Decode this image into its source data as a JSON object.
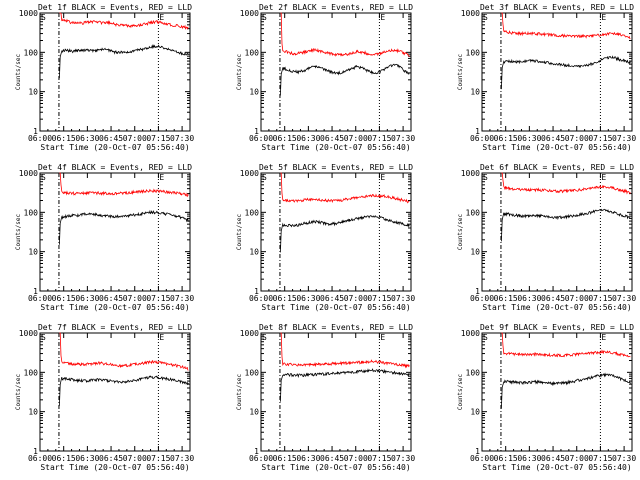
{
  "chart_data": [
    {
      "type": "line",
      "title": "Det 1f BLACK = Events, RED = LLD",
      "xlabel": "Start Time (20-Oct-07 05:56:40)",
      "ylabel": "Counts/sec",
      "yscale": "log",
      "ylim": [
        1,
        1000
      ],
      "xticks": [
        "06:00",
        "06:15",
        "06:30",
        "06:45",
        "07:00",
        "07:15",
        "07:30"
      ],
      "yticks": [
        "1",
        "10",
        "100",
        "1000"
      ],
      "markers": [
        "S",
        "E"
      ],
      "series": [
        {
          "color": "#000000",
          "values": [
            110,
            112,
            105,
            110,
            115,
            113,
            108,
            112,
            120,
            112,
            102,
            100,
            100,
            105,
            112,
            118,
            125,
            138,
            145,
            135,
            120,
            110,
            100,
            92,
            88
          ]
        },
        {
          "color": "#ff0000",
          "values": [
            650,
            620,
            560,
            540,
            560,
            590,
            600,
            580,
            560,
            560,
            520,
            490,
            470,
            470,
            480,
            500,
            530,
            580,
            600,
            560,
            520,
            490,
            470,
            440,
            420
          ]
        }
      ]
    },
    {
      "type": "line",
      "title": "Det 2f BLACK = Events, RED = LLD",
      "xlabel": "Start Time (20-Oct-07 05:56:40)",
      "ylabel": "Counts/sec",
      "yscale": "log",
      "ylim": [
        1,
        1000
      ],
      "xticks": [
        "06:00",
        "06:15",
        "06:30",
        "06:45",
        "07:00",
        "07:15",
        "07:30"
      ],
      "yticks": [
        "1",
        "10",
        "100",
        "1000"
      ],
      "markers": [
        "S",
        "E"
      ],
      "series": [
        {
          "color": "#000000",
          "values": [
            40,
            36,
            32,
            32,
            35,
            40,
            43,
            41,
            36,
            32,
            30,
            30,
            33,
            38,
            43,
            40,
            35,
            30,
            30,
            35,
            42,
            48,
            45,
            35,
            28
          ]
        },
        {
          "color": "#ff0000",
          "values": [
            110,
            100,
            92,
            95,
            102,
            110,
            115,
            110,
            100,
            92,
            88,
            85,
            88,
            96,
            104,
            100,
            94,
            88,
            90,
            98,
            108,
            115,
            110,
            95,
            82
          ]
        }
      ]
    },
    {
      "type": "line",
      "title": "Det 3f BLACK = Events, RED = LLD",
      "xlabel": "Start Time (20-Oct-07 05:56:40)",
      "ylabel": "Counts/sec",
      "yscale": "log",
      "ylim": [
        1,
        1000
      ],
      "xticks": [
        "06:00",
        "06:15",
        "06:30",
        "06:45",
        "07:00",
        "07:15",
        "07:30"
      ],
      "yticks": [
        "1",
        "10",
        "100",
        "1000"
      ],
      "markers": [
        "S",
        "E"
      ],
      "series": [
        {
          "color": "#000000",
          "values": [
            58,
            60,
            57,
            58,
            60,
            62,
            60,
            57,
            55,
            52,
            50,
            48,
            47,
            46,
            46,
            46,
            48,
            52,
            58,
            68,
            75,
            72,
            65,
            60,
            55
          ]
        },
        {
          "color": "#ff0000",
          "values": [
            340,
            320,
            305,
            300,
            300,
            305,
            300,
            295,
            285,
            280,
            270,
            265,
            262,
            260,
            258,
            256,
            258,
            262,
            270,
            280,
            300,
            300,
            280,
            260,
            235
          ]
        }
      ]
    },
    {
      "type": "line",
      "title": "Det 4f BLACK = Events, RED = LLD",
      "xlabel": "Start Time (20-Oct-07 05:56:40)",
      "ylabel": "Counts/sec",
      "yscale": "log",
      "ylim": [
        1,
        1000
      ],
      "xticks": [
        "06:00",
        "06:15",
        "06:30",
        "06:45",
        "07:00",
        "07:15",
        "07:30"
      ],
      "yticks": [
        "1",
        "10",
        "100",
        "1000"
      ],
      "markers": [
        "S",
        "E"
      ],
      "series": [
        {
          "color": "#000000",
          "values": [
            75,
            80,
            82,
            84,
            88,
            90,
            88,
            86,
            82,
            80,
            78,
            78,
            80,
            84,
            88,
            92,
            96,
            100,
            98,
            94,
            90,
            86,
            80,
            72,
            62
          ]
        },
        {
          "color": "#ff0000",
          "values": [
            330,
            315,
            305,
            300,
            305,
            310,
            312,
            310,
            305,
            300,
            300,
            305,
            312,
            320,
            330,
            340,
            350,
            355,
            350,
            340,
            330,
            320,
            305,
            290,
            270
          ]
        }
      ]
    },
    {
      "type": "line",
      "title": "Det 5f BLACK = Events, RED = LLD",
      "xlabel": "Start Time (20-Oct-07 05:56:40)",
      "ylabel": "Counts/sec",
      "yscale": "log",
      "ylim": [
        1,
        1000
      ],
      "xticks": [
        "06:00",
        "06:15",
        "06:30",
        "06:45",
        "07:00",
        "07:15",
        "07:30"
      ],
      "yticks": [
        "1",
        "10",
        "100",
        "1000"
      ],
      "markers": [
        "S",
        "E"
      ],
      "series": [
        {
          "color": "#000000",
          "values": [
            48,
            47,
            46,
            48,
            52,
            55,
            58,
            56,
            52,
            50,
            52,
            55,
            60,
            64,
            70,
            74,
            76,
            78,
            76,
            70,
            64,
            58,
            54,
            50,
            46
          ]
        },
        {
          "color": "#ff0000",
          "values": [
            200,
            195,
            192,
            195,
            205,
            210,
            215,
            210,
            200,
            198,
            200,
            205,
            215,
            225,
            235,
            245,
            255,
            265,
            268,
            258,
            245,
            230,
            215,
            200,
            185
          ]
        }
      ]
    },
    {
      "type": "line",
      "title": "Det 6f BLACK = Events, RED = LLD",
      "xlabel": "Start Time (20-Oct-07 05:56:40)",
      "ylabel": "Counts/sec",
      "yscale": "log",
      "ylim": [
        1,
        1000
      ],
      "xticks": [
        "06:00",
        "06:15",
        "06:30",
        "06:45",
        "07:00",
        "07:15",
        "07:30"
      ],
      "yticks": [
        "1",
        "10",
        "100",
        "1000"
      ],
      "markers": [
        "S",
        "E"
      ],
      "series": [
        {
          "color": "#000000",
          "values": [
            92,
            90,
            86,
            82,
            80,
            82,
            84,
            82,
            78,
            76,
            74,
            75,
            78,
            82,
            86,
            90,
            96,
            104,
            110,
            112,
            106,
            98,
            88,
            80,
            72
          ]
        },
        {
          "color": "#ff0000",
          "values": [
            430,
            410,
            390,
            375,
            370,
            372,
            375,
            370,
            360,
            350,
            345,
            345,
            350,
            360,
            372,
            385,
            400,
            420,
            440,
            445,
            430,
            405,
            375,
            345,
            300
          ]
        }
      ]
    },
    {
      "type": "line",
      "title": "Det 7f BLACK = Events, RED = LLD",
      "xlabel": "Start Time (20-Oct-07 05:56:40)",
      "ylabel": "Counts/sec",
      "yscale": "log",
      "ylim": [
        1,
        1000
      ],
      "xticks": [
        "06:00",
        "06:15",
        "06:30",
        "06:45",
        "07:00",
        "07:15",
        "07:30"
      ],
      "yticks": [
        "1",
        "10",
        "100",
        "1000"
      ],
      "markers": [
        "S",
        "E"
      ],
      "series": [
        {
          "color": "#000000",
          "values": [
            70,
            68,
            66,
            62,
            60,
            62,
            65,
            66,
            64,
            60,
            58,
            56,
            57,
            60,
            64,
            68,
            72,
            76,
            75,
            72,
            68,
            64,
            60,
            56,
            52
          ]
        },
        {
          "color": "#ff0000",
          "values": [
            175,
            170,
            165,
            160,
            158,
            162,
            168,
            172,
            168,
            160,
            152,
            148,
            148,
            152,
            160,
            168,
            178,
            185,
            182,
            175,
            165,
            155,
            145,
            135,
            120
          ]
        }
      ]
    },
    {
      "type": "line",
      "title": "Det 8f BLACK = Events, RED = LLD",
      "xlabel": "Start Time (20-Oct-07 05:56:40)",
      "ylabel": "Counts/sec",
      "yscale": "log",
      "ylim": [
        1,
        1000
      ],
      "xticks": [
        "06:00",
        "06:15",
        "06:30",
        "06:45",
        "07:00",
        "07:15",
        "07:30"
      ],
      "yticks": [
        "1",
        "10",
        "100",
        "1000"
      ],
      "markers": [
        "S",
        "E"
      ],
      "series": [
        {
          "color": "#000000",
          "values": [
            90,
            88,
            85,
            84,
            84,
            86,
            88,
            90,
            92,
            94,
            95,
            96,
            98,
            100,
            104,
            108,
            110,
            112,
            110,
            106,
            102,
            98,
            94,
            90,
            86
          ]
        },
        {
          "color": "#ff0000",
          "values": [
            165,
            160,
            155,
            152,
            152,
            155,
            158,
            160,
            162,
            165,
            168,
            170,
            172,
            175,
            178,
            182,
            186,
            188,
            185,
            178,
            170,
            162,
            156,
            150,
            145
          ]
        }
      ]
    },
    {
      "type": "line",
      "title": "Det 9f BLACK = Events, RED = LLD",
      "xlabel": "Start Time (20-Oct-07 05:56:40)",
      "ylabel": "Counts/sec",
      "yscale": "log",
      "ylim": [
        1,
        1000
      ],
      "xticks": [
        "06:00",
        "06:15",
        "06:30",
        "06:45",
        "07:00",
        "07:15",
        "07:30"
      ],
      "yticks": [
        "1",
        "10",
        "100",
        "1000"
      ],
      "markers": [
        "S",
        "E"
      ],
      "series": [
        {
          "color": "#000000",
          "values": [
            60,
            58,
            56,
            55,
            55,
            56,
            57,
            56,
            54,
            52,
            52,
            53,
            55,
            58,
            62,
            66,
            70,
            76,
            82,
            86,
            84,
            78,
            70,
            62,
            55
          ]
        },
        {
          "color": "#ff0000",
          "values": [
            310,
            300,
            290,
            285,
            282,
            285,
            290,
            288,
            282,
            275,
            272,
            272,
            275,
            280,
            288,
            295,
            305,
            315,
            325,
            330,
            320,
            305,
            285,
            265,
            245
          ]
        }
      ]
    }
  ]
}
